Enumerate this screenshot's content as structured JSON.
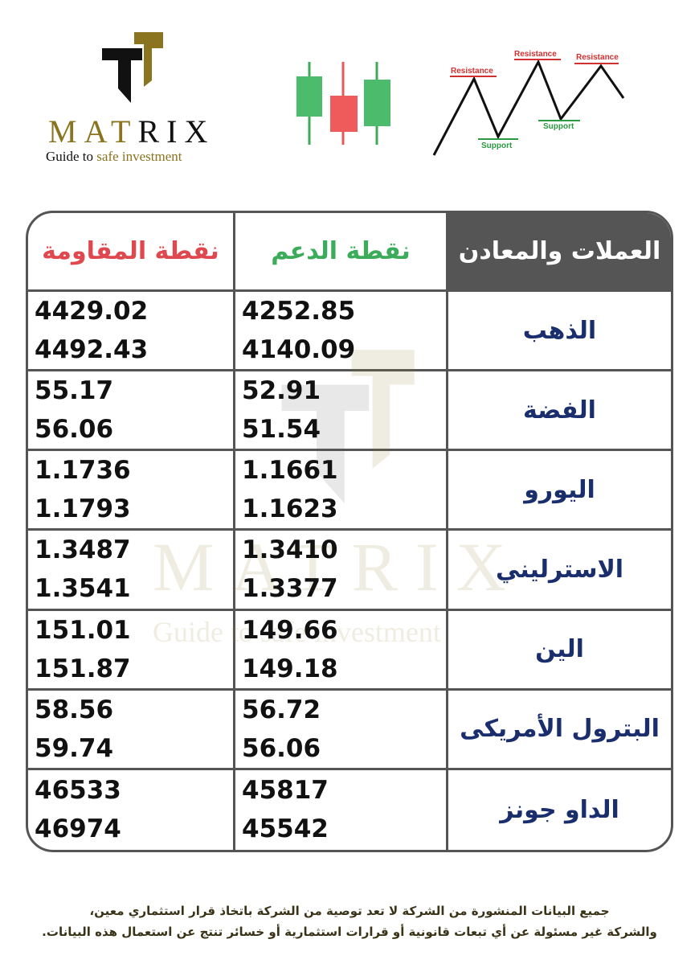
{
  "brand": {
    "name_gold": "MAT",
    "name_dark": "RIX",
    "tagline_dark": "Guide to ",
    "tagline_gold": "safe investment"
  },
  "chart_labels": {
    "resistance": "Resistance",
    "support": "Support"
  },
  "colors": {
    "gold": "#8a7420",
    "green": "#3cac5a",
    "red": "#e04850",
    "header_bg": "#555555",
    "name_text": "#1a2e6e"
  },
  "table": {
    "headers": {
      "resistance": "نقطة المقاومة",
      "support": "نقطة الدعم",
      "category": "العملات والمعادن"
    },
    "rows": [
      {
        "name": "الذهب",
        "support": [
          "4252.85",
          "4140.09"
        ],
        "resistance": [
          "4429.02",
          "4492.43"
        ]
      },
      {
        "name": "الفضة",
        "support": [
          "52.91",
          "51.54"
        ],
        "resistance": [
          "55.17",
          "56.06"
        ]
      },
      {
        "name": "اليورو",
        "support": [
          "1.1661",
          "1.1623"
        ],
        "resistance": [
          "1.1736",
          "1.1793"
        ]
      },
      {
        "name": "الاسترليني",
        "support": [
          "1.3410",
          "1.3377"
        ],
        "resistance": [
          "1.3487",
          "1.3541"
        ]
      },
      {
        "name": "الين",
        "support": [
          "149.66",
          "149.18"
        ],
        "resistance": [
          "151.01",
          "151.87"
        ]
      },
      {
        "name": "البترول الأمريكى",
        "support": [
          "56.72",
          "56.06"
        ],
        "resistance": [
          "58.56",
          "59.74"
        ]
      },
      {
        "name": "الداو جونز",
        "support": [
          "45817",
          "45542"
        ],
        "resistance": [
          "46533",
          "46974"
        ]
      }
    ]
  },
  "disclaimer": {
    "line1": "جميع البيانات المنشورة من الشركة لا تعد توصية من الشركة باتخاذ قرار استثماري معين،",
    "line2": "والشركة غير مسئولة عن أي تبعات قانونية أو قرارات استثمارية أو خسائر تنتج عن استعمال هذه البيانات."
  }
}
